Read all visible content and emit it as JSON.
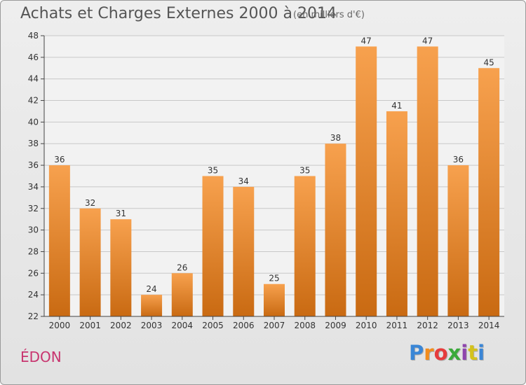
{
  "header": {
    "title": "Achats et Charges Externes 2000 à 2014",
    "subtitle": "(en milliers d'€)"
  },
  "footer": {
    "commune": "ÉDON",
    "logo": "Proxiti",
    "logo_colors": [
      "#3a86d6",
      "#f28c1c",
      "#e63c3c",
      "#3aaa3a",
      "#8e44ad",
      "#d4c21c",
      "#3a86d6"
    ]
  },
  "colors": {
    "bar_top": "#f7a14e",
    "bar_bottom": "#c96a12",
    "grid": "#c8c8c8",
    "axis": "#444444"
  },
  "chart_data": {
    "type": "bar",
    "title": "Achats et Charges Externes 2000 à 2014",
    "subtitle": "(en milliers d'€)",
    "xlabel": "",
    "ylabel": "",
    "categories": [
      "2000",
      "2001",
      "2002",
      "2003",
      "2004",
      "2005",
      "2006",
      "2007",
      "2008",
      "2009",
      "2010",
      "2011",
      "2012",
      "2013",
      "2014"
    ],
    "values": [
      36,
      32,
      31,
      24,
      26,
      35,
      34,
      25,
      35,
      38,
      47,
      41,
      47,
      36,
      45
    ],
    "ylim": [
      22,
      48
    ],
    "yticks": [
      22,
      24,
      26,
      28,
      30,
      32,
      34,
      36,
      38,
      40,
      42,
      44,
      46,
      48
    ],
    "grid": true,
    "legend": "none"
  }
}
